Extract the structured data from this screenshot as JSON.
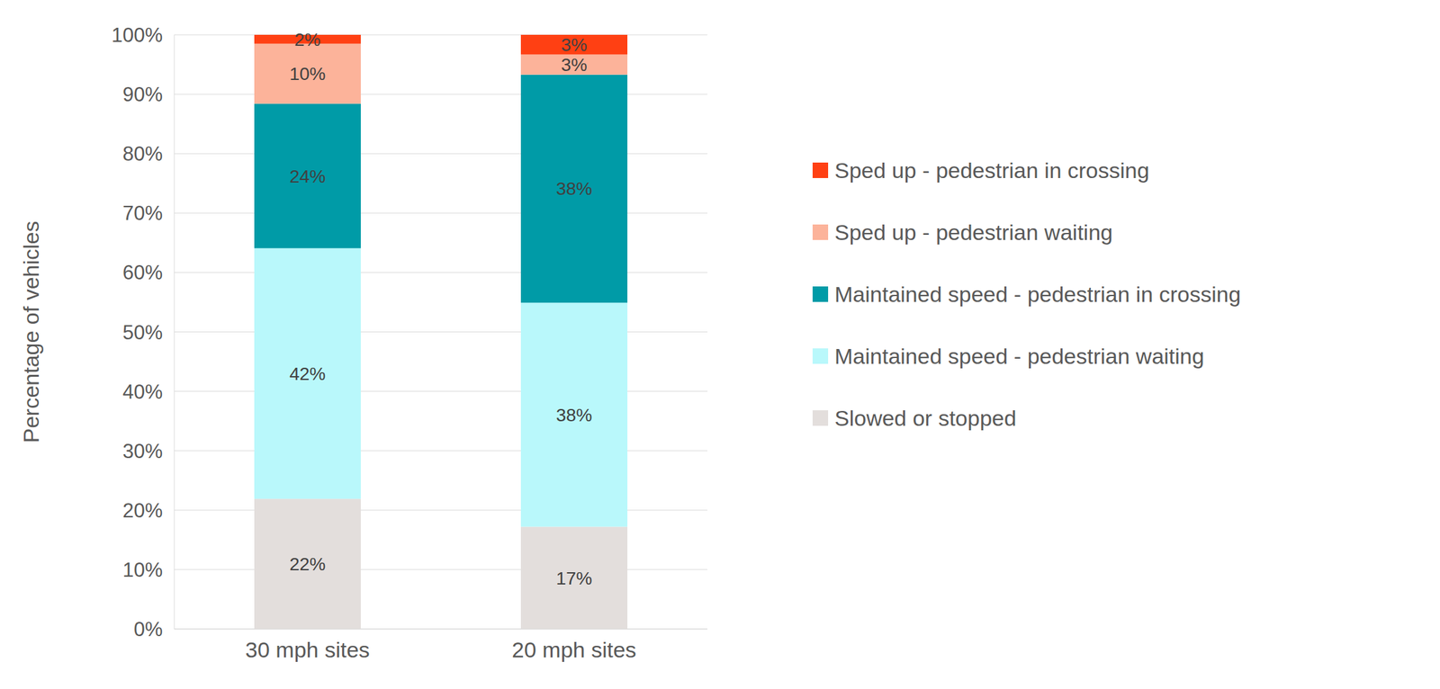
{
  "chart_data": {
    "type": "bar",
    "stacked": true,
    "data_labels": true,
    "grid": true,
    "legend": "right",
    "ylabel": "Percentage of vehicles",
    "categories": [
      "30 mph sites",
      "20 mph sites"
    ],
    "ylim": [
      0,
      100
    ],
    "yticks": [
      {
        "value": 0,
        "label": "0%"
      },
      {
        "value": 10,
        "label": "10%"
      },
      {
        "value": 20,
        "label": "20%"
      },
      {
        "value": 30,
        "label": "30%"
      },
      {
        "value": 40,
        "label": "40%"
      },
      {
        "value": 50,
        "label": "50%"
      },
      {
        "value": 60,
        "label": "60%"
      },
      {
        "value": 70,
        "label": "70%"
      },
      {
        "value": 80,
        "label": "80%"
      },
      {
        "value": 90,
        "label": "90%"
      },
      {
        "value": 100,
        "label": "100%"
      }
    ],
    "series": [
      {
        "name": "Slowed or stopped",
        "color": "#e3dedc",
        "values": [
          21.9,
          17.2
        ],
        "value_labels": [
          "22%",
          "17%"
        ]
      },
      {
        "name": "Maintained speed - pedestrian waiting",
        "color": "#b9f8fb",
        "values": [
          42.2,
          37.7
        ],
        "value_labels": [
          "42%",
          "38%"
        ]
      },
      {
        "name": "Maintained speed - pedestrian in crossing",
        "color": "#009ba7",
        "values": [
          24.3,
          38.4
        ],
        "value_labels": [
          "24%",
          "38%"
        ]
      },
      {
        "name": "Sped up - pedestrian waiting",
        "color": "#fcb39a",
        "values": [
          10.1,
          3.4
        ],
        "value_labels": [
          "10%",
          "3%"
        ]
      },
      {
        "name": "Sped up - pedestrian in crossing",
        "color": "#ff4013",
        "values": [
          1.5,
          3.3
        ],
        "value_labels": [
          "2%",
          "3%"
        ]
      }
    ]
  }
}
